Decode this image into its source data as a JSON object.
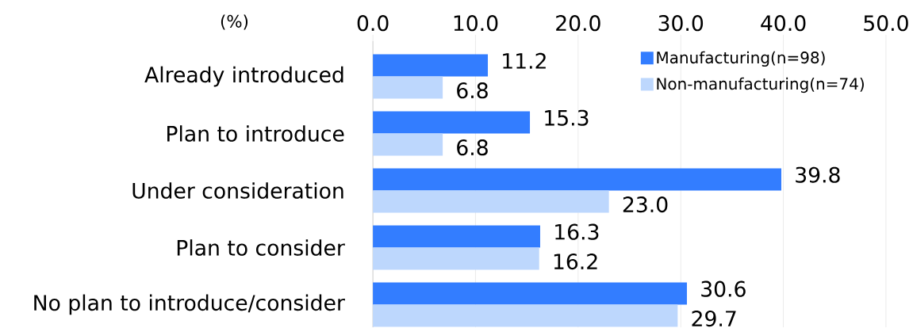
{
  "chart_data": {
    "type": "bar",
    "orientation": "horizontal",
    "xlabel": "(%)",
    "categories": [
      "Already introduced",
      "Plan to introduce",
      "Under consideration",
      "Plan to consider",
      "No plan to introduce/consider"
    ],
    "series": [
      {
        "name": "Manufacturing(n=98)",
        "color": "#337dff",
        "values": [
          11.2,
          15.3,
          39.8,
          16.3,
          30.6
        ],
        "value_labels": [
          "11.2",
          "15.3",
          "39.8",
          "16.3",
          "30.6"
        ]
      },
      {
        "name": "Non-manufacturing(n=74)",
        "color": "#bdd7fd",
        "values": [
          6.8,
          6.8,
          23.0,
          16.2,
          29.7
        ],
        "value_labels": [
          "6.8",
          "6.8",
          "23.0",
          "16.2",
          "29.7"
        ]
      }
    ],
    "xlim": [
      0,
      50
    ],
    "xticks": [
      {
        "value": 0,
        "label": "0.0"
      },
      {
        "value": 10,
        "label": "10.0"
      },
      {
        "value": 20,
        "label": "20.0"
      },
      {
        "value": 30,
        "label": "30.0"
      },
      {
        "value": 40,
        "label": "40.0"
      },
      {
        "value": 50,
        "label": "50.0"
      }
    ],
    "grid": "x",
    "legend": "top right"
  }
}
